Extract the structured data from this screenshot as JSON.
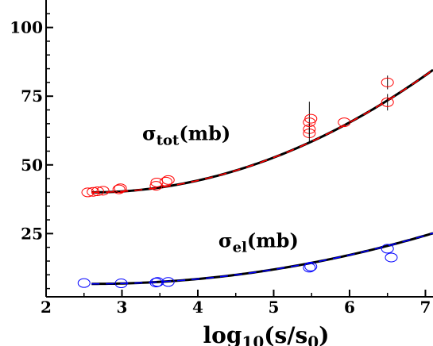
{
  "chart_data": {
    "type": "scatter",
    "title": "",
    "xlabel": "log10(s/s0)",
    "ylabel": "",
    "xlim": [
      2.0,
      7.1
    ],
    "ylim": [
      2,
      110
    ],
    "x_ticks": [
      2,
      3,
      4,
      5,
      6,
      7
    ],
    "y_ticks": [
      25,
      50,
      75,
      100
    ],
    "grid": false,
    "legend": "none",
    "annotations": [
      {
        "name": "sigma-tot-label",
        "symbol": "σ",
        "sub": "tot",
        "unit": "(mb)",
        "x": 3.85,
        "y": 59
      },
      {
        "name": "sigma-el-label",
        "symbol": "σ",
        "sub": "el",
        "unit": "(mb)",
        "x": 4.8,
        "y": 20
      }
    ],
    "series": [
      {
        "name": "σtot",
        "color": "#ff0000",
        "fit_color": "#000000",
        "points": [
          {
            "x": 2.55,
            "y": 40.0
          },
          {
            "x": 2.62,
            "y": 40.2
          },
          {
            "x": 2.68,
            "y": 40.4
          },
          {
            "x": 2.75,
            "y": 40.6
          },
          {
            "x": 2.96,
            "y": 41.1
          },
          {
            "x": 2.98,
            "y": 41.5
          },
          {
            "x": 3.45,
            "y": 42.4
          },
          {
            "x": 3.46,
            "y": 43.6
          },
          {
            "x": 3.58,
            "y": 43.9
          },
          {
            "x": 3.61,
            "y": 44.5
          },
          {
            "x": 5.47,
            "y": 61.5
          },
          {
            "x": 5.47,
            "y": 63.0,
            "err": 2.5
          },
          {
            "x": 5.47,
            "y": 65.5,
            "err": 7.5
          },
          {
            "x": 5.49,
            "y": 66.8
          },
          {
            "x": 5.93,
            "y": 65.5
          },
          {
            "x": 6.5,
            "y": 72.8,
            "err": 3.0
          },
          {
            "x": 6.5,
            "y": 80.0,
            "err": 2.5
          }
        ],
        "fit": {
          "form": "a + b*(x-2.6)^2",
          "a": 40.0,
          "b": 2.2,
          "x_range": [
            2.6,
            7.1
          ]
        }
      },
      {
        "name": "σel",
        "color": "#0000ff",
        "fit_color": "#000000",
        "points": [
          {
            "x": 2.5,
            "y": 7.0
          },
          {
            "x": 2.99,
            "y": 6.9
          },
          {
            "x": 3.45,
            "y": 7.2
          },
          {
            "x": 3.47,
            "y": 7.4
          },
          {
            "x": 3.61,
            "y": 7.4
          },
          {
            "x": 5.47,
            "y": 12.6
          },
          {
            "x": 5.49,
            "y": 13.0
          },
          {
            "x": 6.5,
            "y": 19.5
          },
          {
            "x": 6.55,
            "y": 16.3
          }
        ],
        "fit": {
          "form": "a + b*(x-2.6)^2",
          "a": 6.7,
          "b": 0.91,
          "x_range": [
            2.6,
            7.1
          ]
        }
      }
    ]
  }
}
